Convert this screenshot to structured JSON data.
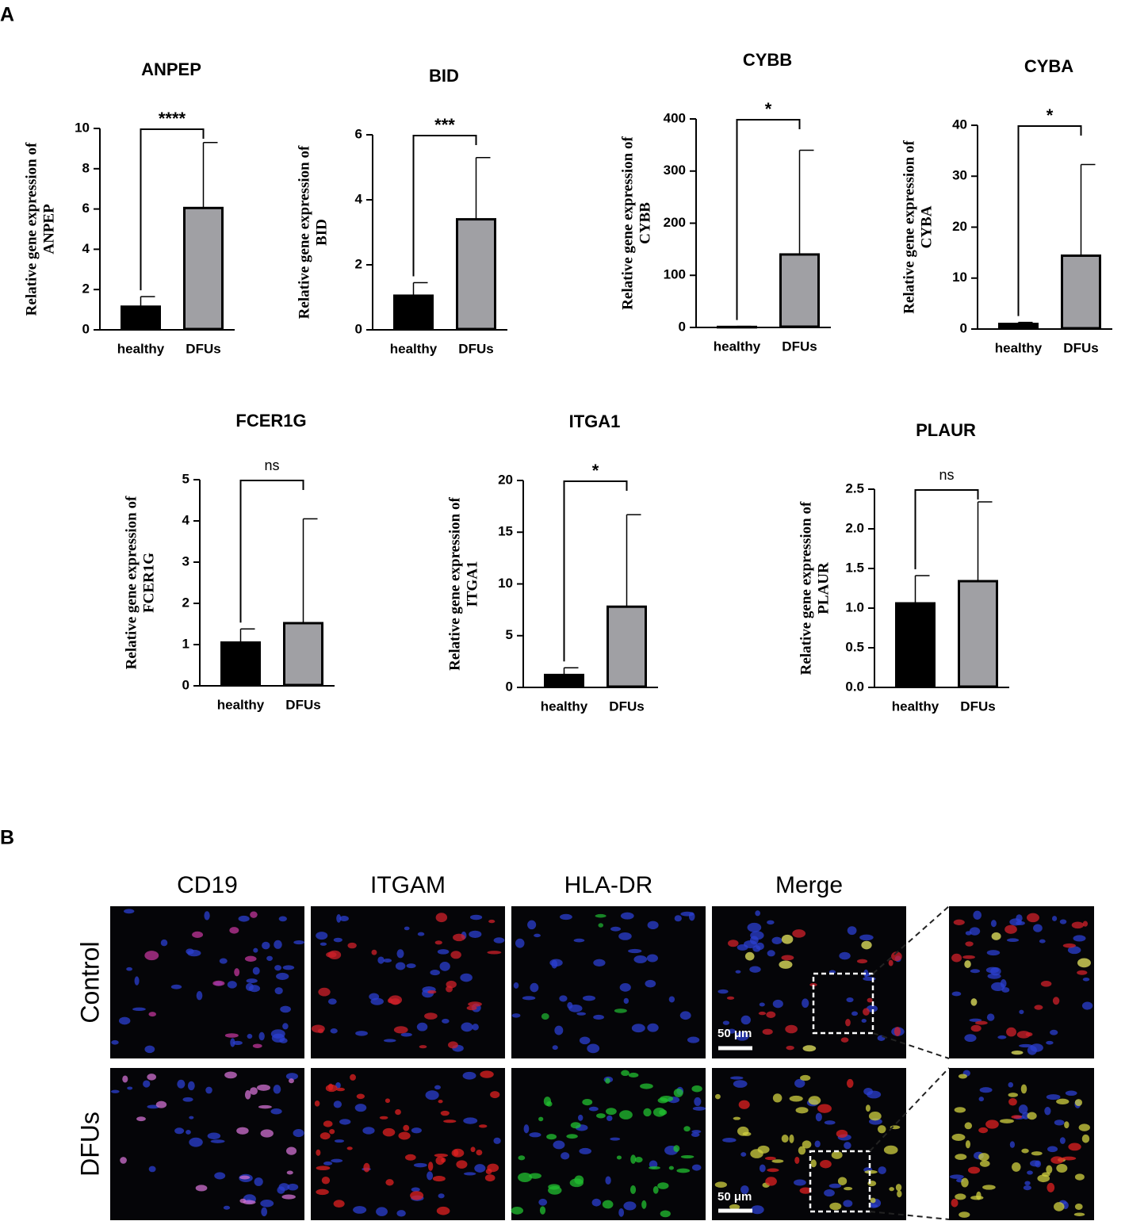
{
  "panel_a_label": "A",
  "panel_b_label": "B",
  "chart_data": [
    {
      "type": "bar",
      "title": "ANPEP",
      "ylabel": [
        "Relative gene expression of",
        "ANPEP"
      ],
      "categories": [
        "healthy",
        "DFUs"
      ],
      "values": [
        1.15,
        6.05
      ],
      "errors": [
        0.5,
        3.25
      ],
      "colors": [
        "#000000",
        "#a0a0a4"
      ],
      "ylim": [
        0,
        10
      ],
      "yticks": [
        0,
        2,
        4,
        6,
        8,
        10
      ],
      "annotation": "****"
    },
    {
      "type": "bar",
      "title": "BID",
      "ylabel": [
        "Relative gene expression of",
        "BID"
      ],
      "categories": [
        "healthy",
        "DFUs"
      ],
      "values": [
        1.05,
        3.4
      ],
      "errors": [
        0.4,
        1.9
      ],
      "colors": [
        "#000000",
        "#a0a0a4"
      ],
      "ylim": [
        0,
        6
      ],
      "yticks": [
        0,
        2,
        4,
        6
      ],
      "annotation": "***"
    },
    {
      "type": "bar",
      "title": "CYBB",
      "ylabel": [
        "Relative gene expression of",
        "CYBB"
      ],
      "categories": [
        "healthy",
        "DFUs"
      ],
      "values": [
        1,
        140
      ],
      "errors": [
        1,
        200
      ],
      "colors": [
        "#000000",
        "#a0a0a4"
      ],
      "ylim": [
        0,
        400
      ],
      "yticks": [
        0,
        100,
        200,
        300,
        400
      ],
      "annotation": "*"
    },
    {
      "type": "bar",
      "title": "CYBA",
      "ylabel": [
        "Relative gene expression of",
        "CYBA"
      ],
      "categories": [
        "healthy",
        "DFUs"
      ],
      "values": [
        1,
        14.4
      ],
      "errors": [
        0.3,
        17.9
      ],
      "colors": [
        "#000000",
        "#a0a0a4"
      ],
      "ylim": [
        0,
        40
      ],
      "yticks": [
        0,
        10,
        20,
        30,
        40
      ],
      "annotation": "*"
    },
    {
      "type": "bar",
      "title": "FCER1G",
      "ylabel": [
        "Relative gene expression of",
        "FCER1G"
      ],
      "categories": [
        "healthy",
        "DFUs"
      ],
      "values": [
        1.05,
        1.52
      ],
      "errors": [
        0.33,
        2.53
      ],
      "colors": [
        "#000000",
        "#a0a0a4"
      ],
      "ylim": [
        0,
        5
      ],
      "yticks": [
        0,
        1,
        2,
        3,
        4,
        5
      ],
      "annotation": "ns"
    },
    {
      "type": "bar",
      "title": "ITGA1",
      "ylabel": [
        "Relative gene expression of",
        "ITGA1"
      ],
      "categories": [
        "healthy",
        "DFUs"
      ],
      "values": [
        1.2,
        7.8
      ],
      "errors": [
        0.7,
        8.9
      ],
      "colors": [
        "#000000",
        "#a0a0a4"
      ],
      "ylim": [
        0,
        20
      ],
      "yticks": [
        0,
        5,
        10,
        15,
        20
      ],
      "annotation": "*"
    },
    {
      "type": "bar",
      "title": "PLAUR",
      "ylabel": [
        "Relative gene expression of",
        "PLAUR"
      ],
      "categories": [
        "healthy",
        "DFUs"
      ],
      "values": [
        1.06,
        1.34
      ],
      "errors": [
        0.35,
        1.0
      ],
      "colors": [
        "#000000",
        "#a0a0a4"
      ],
      "ylim": [
        0,
        2.5
      ],
      "yticks": [
        {
          "value": 0,
          "label": "0.0"
        },
        0.5,
        {
          "value": 1,
          "label": "1.0"
        },
        1.5,
        {
          "value": 2,
          "label": "2.0"
        },
        2.5
      ],
      "annotation": "ns"
    }
  ],
  "figure_b": {
    "columns": [
      "CD19",
      "ITGAM",
      "HLA-DR",
      "Merge"
    ],
    "rows": [
      "Control",
      "DFUs"
    ],
    "scale_bar": "50 μm"
  }
}
